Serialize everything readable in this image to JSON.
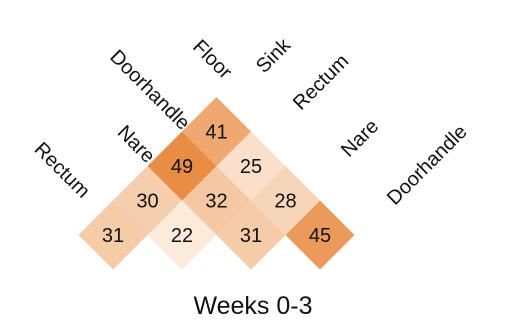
{
  "chart_data": {
    "type": "heatmap",
    "caption": "Weeks 0-3",
    "left_labels": [
      "Rectum",
      "Nare",
      "Doorhandle",
      "Floor"
    ],
    "right_labels": [
      "Sink",
      "Rectum",
      "Nare",
      "Doorhandle"
    ],
    "cells": [
      {
        "row": 0,
        "col": 0,
        "value": 31
      },
      {
        "row": 0,
        "col": 1,
        "value": 22
      },
      {
        "row": 0,
        "col": 2,
        "value": 31
      },
      {
        "row": 0,
        "col": 3,
        "value": 45
      },
      {
        "row": 1,
        "col": 1,
        "value": 30
      },
      {
        "row": 1,
        "col": 2,
        "value": 32
      },
      {
        "row": 1,
        "col": 3,
        "value": 28
      },
      {
        "row": 2,
        "col": 2,
        "value": 49
      },
      {
        "row": 2,
        "col": 3,
        "value": 25
      },
      {
        "row": 3,
        "col": 3,
        "value": 41
      }
    ],
    "color_scale": {
      "low": "#fdf1e6",
      "high": "#e8893e",
      "min": 20,
      "max": 50
    }
  }
}
